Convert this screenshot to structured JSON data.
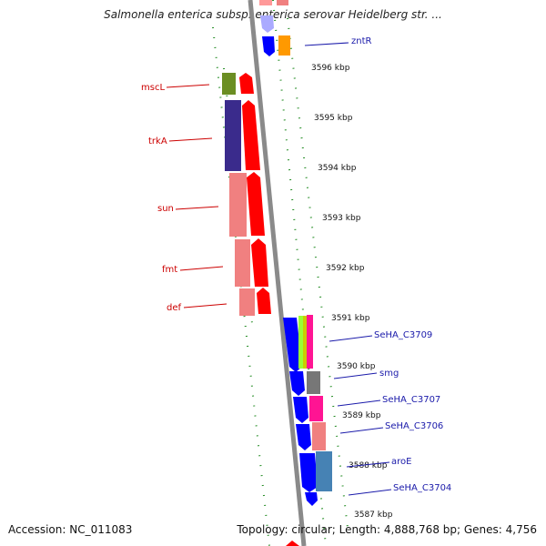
{
  "title": "Salmonella enterica subsp. enterica serovar Heidelberg str. ...",
  "footer": {
    "accession": "Accession: NC_011083",
    "topology": "Topology: circular; Length: 4,888,768 bp; Genes: 4,756"
  },
  "ticks": [
    "3596 kbp",
    "3595 kbp",
    "3594 kbp",
    "3593 kbp",
    "3592 kbp",
    "3591 kbp",
    "3590 kbp",
    "3589 kbp",
    "3588 kbp",
    "3587 kbp"
  ],
  "left_genes": [
    "mscL",
    "trkA",
    "sun",
    "fmt",
    "def"
  ],
  "right_genes": [
    "zntR",
    "SeHA_C3709",
    "smg",
    "SeHA_C3707",
    "SeHA_C3706",
    "aroE",
    "SeHA_C3704"
  ],
  "colors": {
    "forward_strand": "#ff0000",
    "reverse_strand": "#0000ff",
    "backbone": "#888888",
    "ticks": "#1f8a1f"
  }
}
